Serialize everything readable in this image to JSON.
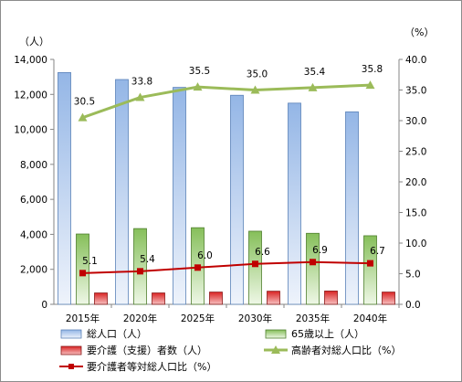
{
  "chart_data": {
    "type": "bar",
    "categories": [
      "2015年",
      "2020年",
      "2025年",
      "2030年",
      "2035年",
      "2040年"
    ],
    "y_left": {
      "unit": "（人）",
      "ylim": [
        0,
        14000
      ],
      "ticks": [
        "0",
        "2,000",
        "4,000",
        "6,000",
        "8,000",
        "10,000",
        "12,000",
        "14,000"
      ]
    },
    "y_right": {
      "unit": "（%）",
      "ylim": [
        0,
        40
      ],
      "ticks": [
        "0.0",
        "5.0",
        "10.0",
        "15.0",
        "20.0",
        "25.0",
        "30.0",
        "35.0",
        "40.0"
      ]
    },
    "series": [
      {
        "name": "総人口（人）",
        "type": "bar",
        "axis": "left",
        "color": "#9bbbe8",
        "values": [
          13250,
          12850,
          12400,
          11950,
          11500,
          11000
        ]
      },
      {
        "name": "65歳以上（人）",
        "type": "bar",
        "axis": "left",
        "color": "#8cc262",
        "values": [
          4020,
          4330,
          4380,
          4180,
          4060,
          3920
        ]
      },
      {
        "name": "要介護（支援）者数（人）",
        "type": "bar",
        "axis": "left",
        "color": "#e03030",
        "values": [
          650,
          650,
          700,
          750,
          760,
          700
        ]
      },
      {
        "name": "高齢者対総人口比（%）",
        "type": "line",
        "axis": "right",
        "color": "#9bbb59",
        "marker": "triangle",
        "values": [
          30.5,
          33.8,
          35.5,
          35.0,
          35.4,
          35.8
        ],
        "labels": [
          "30.5",
          "33.8",
          "35.5",
          "35.0",
          "35.4",
          "35.8"
        ]
      },
      {
        "name": "要介護者等対総人口比（%）",
        "type": "line",
        "axis": "right",
        "color": "#c00000",
        "marker": "square",
        "values": [
          5.1,
          5.4,
          6.0,
          6.6,
          6.9,
          6.7
        ],
        "labels": [
          "5.1",
          "5.4",
          "6.0",
          "6.6",
          "6.9",
          "6.7"
        ]
      }
    ],
    "legend_position": "bottom",
    "grid": false
  }
}
